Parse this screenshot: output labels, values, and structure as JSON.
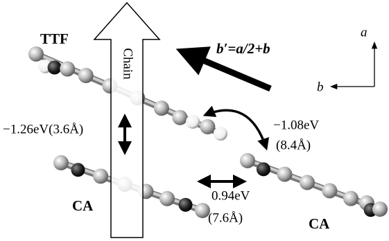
{
  "labels": {
    "ttf": "TTF",
    "ca_left": "CA",
    "ca_right": "CA",
    "chain": "Chain",
    "vector": "b′=a/2+b",
    "axis_a": "a",
    "axis_b": "b",
    "transfer_vertical": "−1.26eV(3.6Å)",
    "transfer_diagonal": "−1.08eV",
    "distance_diagonal": "(8.4Å)",
    "transfer_horizontal": "0.94eV",
    "distance_horizontal": "(7.6Å)"
  }
}
